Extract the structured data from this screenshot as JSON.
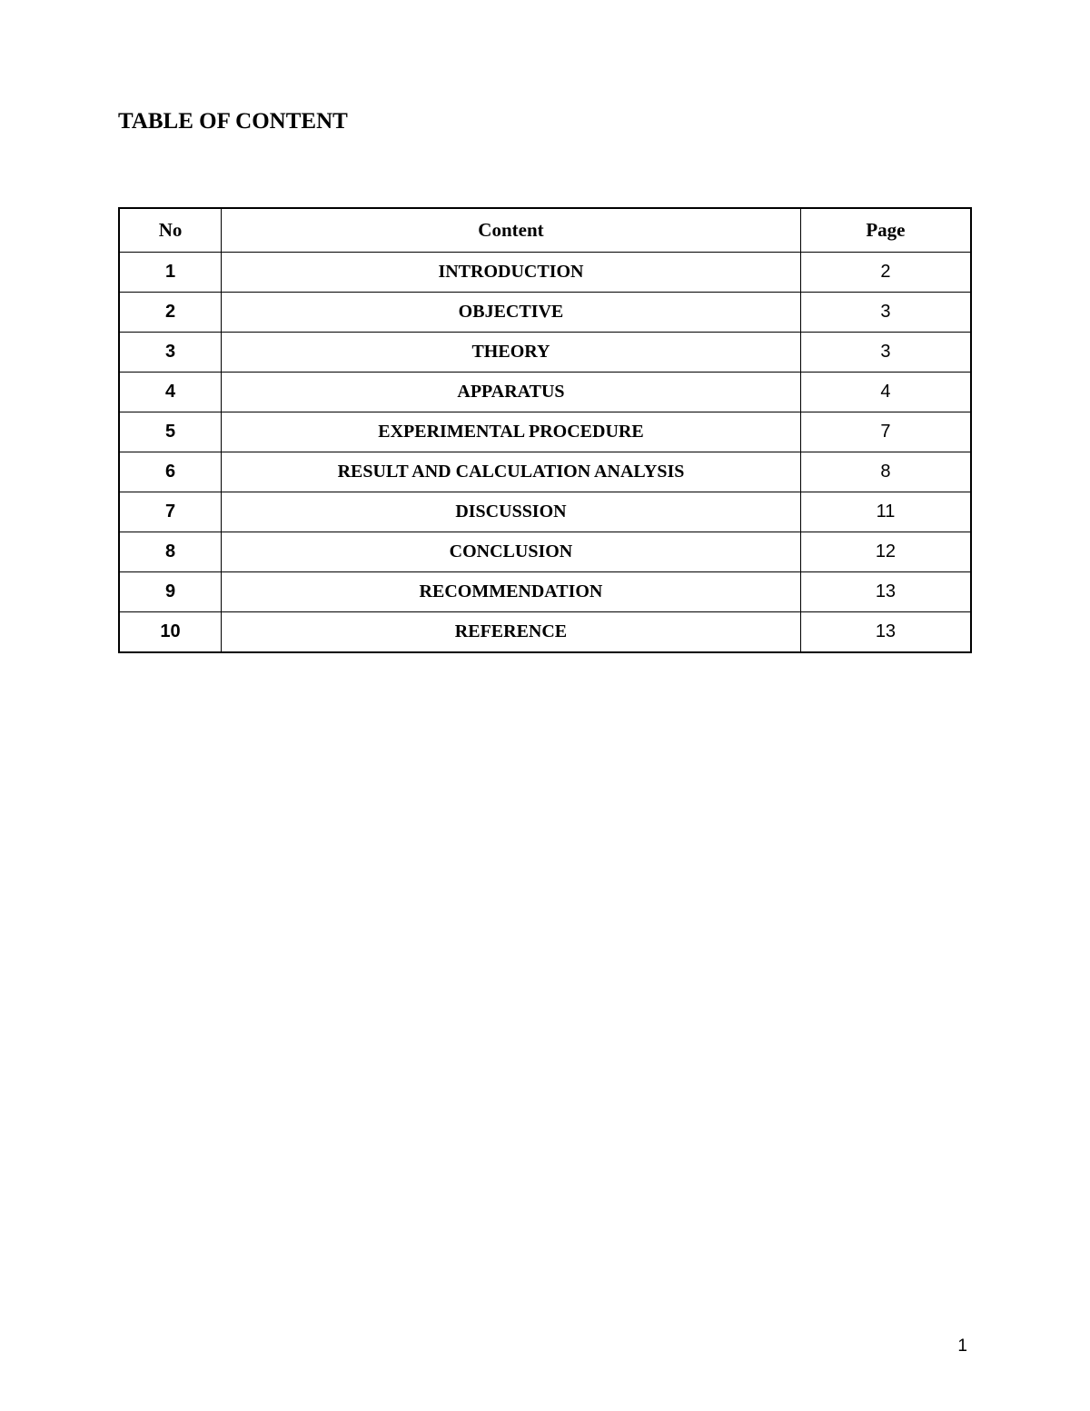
{
  "document": {
    "title": "TABLE OF CONTENT",
    "page_number": "1",
    "table": {
      "type": "table",
      "columns": [
        "No",
        "Content",
        "Page"
      ],
      "column_widths_pct": [
        12,
        68,
        20
      ],
      "header_font": "Times New Roman",
      "header_fontsize": 21,
      "header_fontweight": "bold",
      "border_color": "#000000",
      "border_width": 1.5,
      "background_color": "#ffffff",
      "text_color": "#000000",
      "cell_alignment": "center",
      "no_column_font": "Arial",
      "no_column_fontweight": "bold",
      "no_column_fontsize": 20,
      "content_column_font": "Times New Roman",
      "content_column_fontweight": "bold",
      "content_column_fontsize": 20,
      "page_column_font": "Arial",
      "page_column_fontweight": "normal",
      "page_column_fontsize": 20,
      "rows": [
        {
          "no": "1",
          "content": "INTRODUCTION",
          "page": "2"
        },
        {
          "no": "2",
          "content": "OBJECTIVE",
          "page": "3"
        },
        {
          "no": "3",
          "content": "THEORY",
          "page": "3"
        },
        {
          "no": "4",
          "content": "APPARATUS",
          "page": "4"
        },
        {
          "no": "5",
          "content": "EXPERIMENTAL PROCEDURE",
          "page": "7"
        },
        {
          "no": "6",
          "content": "RESULT AND CALCULATION ANALYSIS",
          "page": "8"
        },
        {
          "no": "7",
          "content": "DISCUSSION",
          "page": "11"
        },
        {
          "no": "8",
          "content": "CONCLUSION",
          "page": "12"
        },
        {
          "no": "9",
          "content": "RECOMMENDATION",
          "page": "13"
        },
        {
          "no": "10",
          "content": "REFERENCE",
          "page": "13"
        }
      ]
    }
  }
}
